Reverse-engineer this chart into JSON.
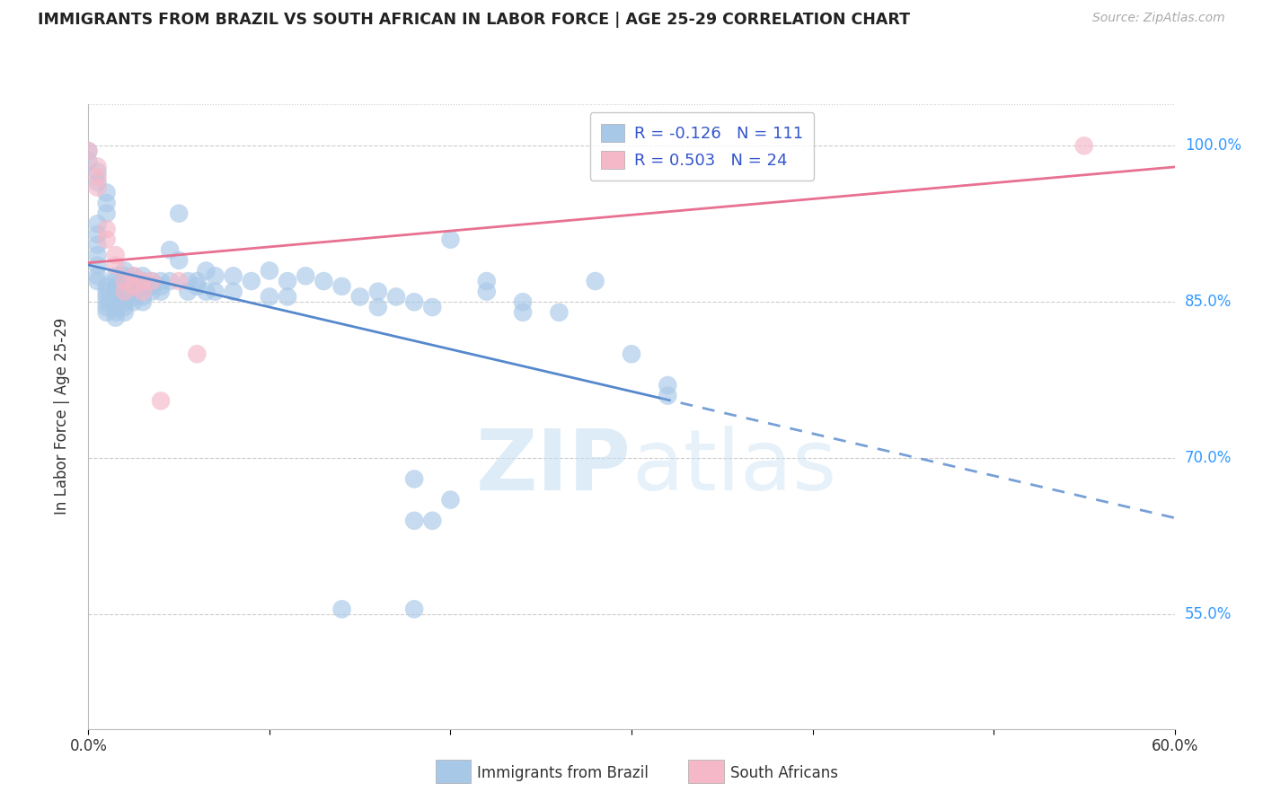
{
  "title": "IMMIGRANTS FROM BRAZIL VS SOUTH AFRICAN IN LABOR FORCE | AGE 25-29 CORRELATION CHART",
  "source": "Source: ZipAtlas.com",
  "ylabel": "In Labor Force | Age 25-29",
  "xlim": [
    0.0,
    0.6
  ],
  "ylim": [
    0.44,
    1.04
  ],
  "xticks": [
    0.0,
    0.1,
    0.2,
    0.3,
    0.4,
    0.5,
    0.6
  ],
  "xticklabels": [
    "0.0%",
    "",
    "",
    "",
    "",
    "",
    "60.0%"
  ],
  "ytick_positions": [
    0.55,
    0.7,
    0.85,
    1.0
  ],
  "ytick_labels": [
    "55.0%",
    "70.0%",
    "85.0%",
    "100.0%"
  ],
  "blue_color": "#a8c8e8",
  "pink_color": "#f5b8c8",
  "trend_blue": "#5588cc",
  "trend_pink": "#e87090",
  "brazil_data": [
    [
      0.0,
      0.995
    ],
    [
      0.0,
      0.985
    ],
    [
      0.005,
      0.975
    ],
    [
      0.005,
      0.965
    ],
    [
      0.01,
      0.955
    ],
    [
      0.01,
      0.945
    ],
    [
      0.01,
      0.935
    ],
    [
      0.005,
      0.925
    ],
    [
      0.005,
      0.915
    ],
    [
      0.005,
      0.905
    ],
    [
      0.005,
      0.895
    ],
    [
      0.005,
      0.885
    ],
    [
      0.005,
      0.875
    ],
    [
      0.005,
      0.87
    ],
    [
      0.01,
      0.865
    ],
    [
      0.01,
      0.86
    ],
    [
      0.01,
      0.855
    ],
    [
      0.01,
      0.85
    ],
    [
      0.01,
      0.845
    ],
    [
      0.01,
      0.84
    ],
    [
      0.015,
      0.875
    ],
    [
      0.015,
      0.87
    ],
    [
      0.015,
      0.865
    ],
    [
      0.015,
      0.86
    ],
    [
      0.015,
      0.855
    ],
    [
      0.015,
      0.85
    ],
    [
      0.015,
      0.845
    ],
    [
      0.015,
      0.84
    ],
    [
      0.015,
      0.835
    ],
    [
      0.02,
      0.88
    ],
    [
      0.02,
      0.875
    ],
    [
      0.02,
      0.87
    ],
    [
      0.02,
      0.865
    ],
    [
      0.02,
      0.86
    ],
    [
      0.02,
      0.855
    ],
    [
      0.02,
      0.85
    ],
    [
      0.02,
      0.845
    ],
    [
      0.02,
      0.84
    ],
    [
      0.025,
      0.875
    ],
    [
      0.025,
      0.87
    ],
    [
      0.025,
      0.865
    ],
    [
      0.025,
      0.86
    ],
    [
      0.025,
      0.855
    ],
    [
      0.025,
      0.85
    ],
    [
      0.03,
      0.875
    ],
    [
      0.03,
      0.87
    ],
    [
      0.03,
      0.865
    ],
    [
      0.03,
      0.855
    ],
    [
      0.03,
      0.85
    ],
    [
      0.035,
      0.87
    ],
    [
      0.035,
      0.865
    ],
    [
      0.035,
      0.86
    ],
    [
      0.04,
      0.87
    ],
    [
      0.04,
      0.865
    ],
    [
      0.04,
      0.86
    ],
    [
      0.045,
      0.9
    ],
    [
      0.045,
      0.87
    ],
    [
      0.05,
      0.935
    ],
    [
      0.05,
      0.89
    ],
    [
      0.055,
      0.87
    ],
    [
      0.055,
      0.86
    ],
    [
      0.06,
      0.87
    ],
    [
      0.06,
      0.865
    ],
    [
      0.065,
      0.88
    ],
    [
      0.065,
      0.86
    ],
    [
      0.07,
      0.875
    ],
    [
      0.07,
      0.86
    ],
    [
      0.08,
      0.875
    ],
    [
      0.08,
      0.86
    ],
    [
      0.09,
      0.87
    ],
    [
      0.1,
      0.88
    ],
    [
      0.1,
      0.855
    ],
    [
      0.11,
      0.87
    ],
    [
      0.11,
      0.855
    ],
    [
      0.12,
      0.875
    ],
    [
      0.13,
      0.87
    ],
    [
      0.14,
      0.865
    ],
    [
      0.15,
      0.855
    ],
    [
      0.16,
      0.86
    ],
    [
      0.16,
      0.845
    ],
    [
      0.17,
      0.855
    ],
    [
      0.18,
      0.85
    ],
    [
      0.19,
      0.845
    ],
    [
      0.2,
      0.91
    ],
    [
      0.22,
      0.87
    ],
    [
      0.22,
      0.86
    ],
    [
      0.24,
      0.85
    ],
    [
      0.24,
      0.84
    ],
    [
      0.26,
      0.84
    ],
    [
      0.28,
      0.87
    ],
    [
      0.3,
      0.8
    ],
    [
      0.32,
      0.77
    ],
    [
      0.32,
      0.76
    ],
    [
      0.18,
      0.68
    ],
    [
      0.2,
      0.66
    ],
    [
      0.18,
      0.64
    ],
    [
      0.19,
      0.64
    ],
    [
      0.14,
      0.555
    ],
    [
      0.18,
      0.555
    ]
  ],
  "sa_data": [
    [
      0.0,
      0.995
    ],
    [
      0.005,
      0.98
    ],
    [
      0.005,
      0.97
    ],
    [
      0.005,
      0.96
    ],
    [
      0.01,
      0.92
    ],
    [
      0.01,
      0.91
    ],
    [
      0.015,
      0.895
    ],
    [
      0.015,
      0.885
    ],
    [
      0.02,
      0.87
    ],
    [
      0.02,
      0.86
    ],
    [
      0.025,
      0.875
    ],
    [
      0.025,
      0.865
    ],
    [
      0.03,
      0.87
    ],
    [
      0.03,
      0.86
    ],
    [
      0.035,
      0.87
    ],
    [
      0.04,
      0.755
    ],
    [
      0.05,
      0.87
    ],
    [
      0.06,
      0.8
    ],
    [
      0.55,
      1.0
    ]
  ]
}
